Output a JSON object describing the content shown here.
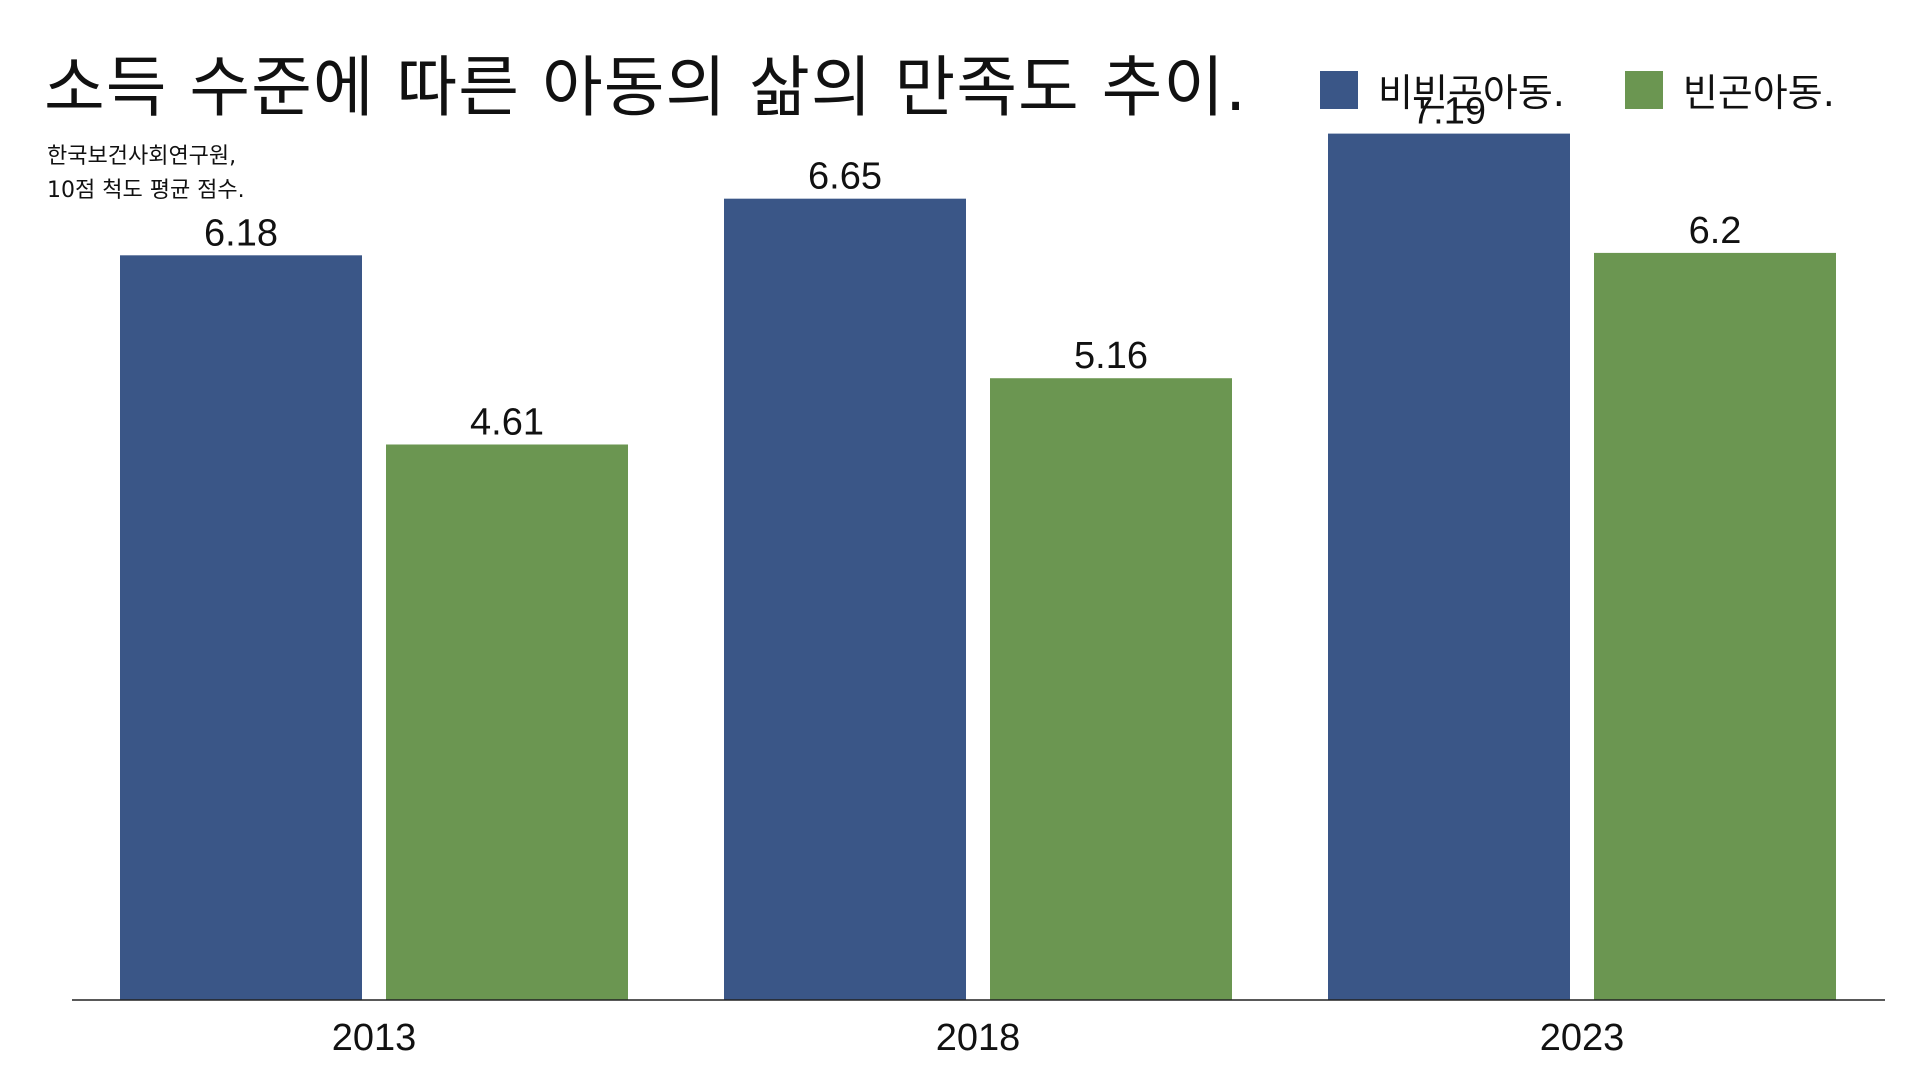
{
  "title": "소득 수준에 따른 아동의 삶의 만족도 추이.",
  "source_lines": [
    "한국보건사회연구원,",
    "10점 척도 평균 점수."
  ],
  "legend": [
    {
      "label": "비빈곤아동.",
      "color": "#3a5687"
    },
    {
      "label": "빈곤아동.",
      "color": "#6b9651"
    }
  ],
  "chart_data": {
    "type": "bar",
    "title": "소득 수준에 따른 아동의 삶의 만족도 추이.",
    "categories": [
      "2013",
      "2018",
      "2023"
    ],
    "series": [
      {
        "name": "비빈곤아동.",
        "values": [
          6.18,
          6.65,
          7.19
        ],
        "labels": [
          "6.18",
          "6.65",
          "7.19"
        ],
        "color": "#3a5687"
      },
      {
        "name": "빈곤아동.",
        "values": [
          4.61,
          5.16,
          6.2
        ],
        "labels": [
          "4.61",
          "5.16",
          "6.2"
        ],
        "color": "#6b9651"
      }
    ],
    "xlabel": "",
    "ylabel": "",
    "ylim": [
      0,
      7.5
    ],
    "grid": false,
    "legend_position": "top-right"
  }
}
